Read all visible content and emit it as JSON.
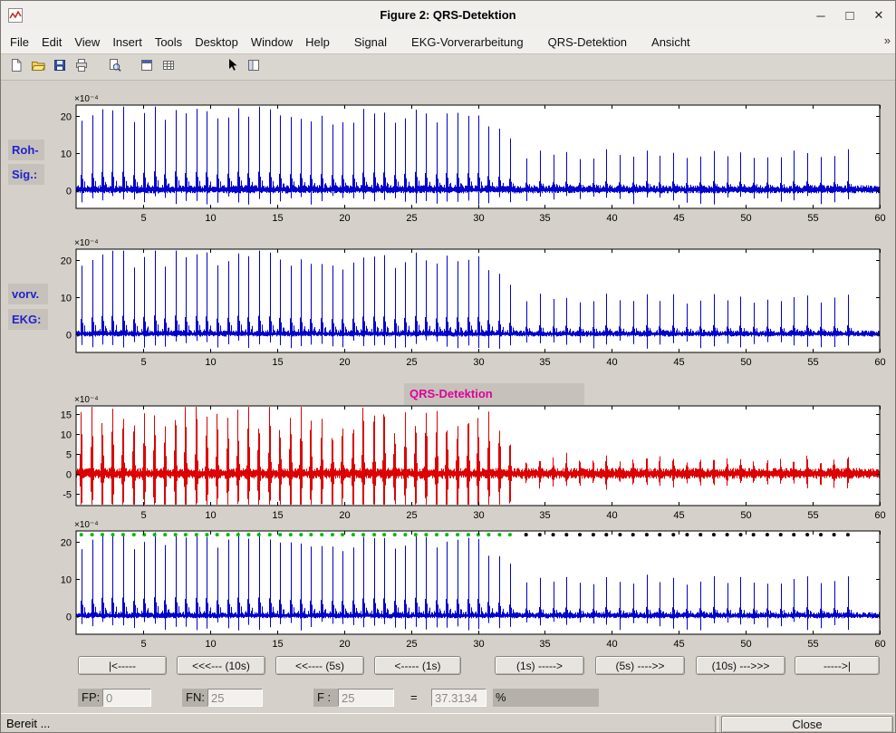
{
  "window": {
    "title": "Figure 2: QRS-Detektion",
    "controls": {
      "minimize": "─",
      "maximize": "□",
      "close": "✕"
    }
  },
  "menu": {
    "items": [
      "File",
      "Edit",
      "View",
      "Insert",
      "Tools",
      "Desktop",
      "Window",
      "Help",
      "Signal",
      "EKG-Vorverarbeitung",
      "QRS-Detektion",
      "Ansicht"
    ],
    "overflow": "»"
  },
  "toolbar": {
    "icons": [
      "new-document",
      "open-folder",
      "save",
      "print",
      "print-preview",
      "dock-window",
      "insert-table",
      "pointer",
      "layout-panels"
    ]
  },
  "panel_labels": {
    "roh_line1": "Roh-",
    "roh_line2": "Sig.:",
    "vorv_line1": "vorv.",
    "vorv_line2": "EKG:",
    "qrs_title": "QRS-Detektion"
  },
  "nav_buttons": [
    "|<-----",
    "<<<--- (10s)",
    "<<---- (5s)",
    "<----- (1s)",
    "(1s) ----->",
    "(5s) ---->>",
    "(10s) --->>>",
    "----->|"
  ],
  "fields": {
    "fp_label": "FP:",
    "fp_value": "0",
    "fn_label": "FN:",
    "fn_value": "25",
    "f_label": "F :",
    "f_value": "25",
    "equals": "=",
    "result_value": "37.3134",
    "percent": "%"
  },
  "statusbar": {
    "text": "Bereit ...",
    "close_label": "Close"
  },
  "colors": {
    "signal_blue": "#0000cc",
    "signal_red": "#dd0000",
    "label_blue": "#2222cc",
    "qrs_magenta": "#e0009b",
    "marker_detected": "#00bb00",
    "marker_missed": "#000000"
  },
  "beats": {
    "segments": [
      {
        "start": 0.4,
        "period": 0.78,
        "count": 42,
        "base_amp": 20
      },
      {
        "start": 33.6,
        "period": 1.0,
        "count": 25,
        "base_amp": 9.5
      }
    ],
    "taper_start": 30,
    "taper_end": 34,
    "taper_factor": 0.45,
    "marker_y": 22
  },
  "chart_data": [
    {
      "name": "roh-signal",
      "type": "line",
      "signal": "ecg",
      "color": "#0000cc",
      "x_range": [
        0,
        60
      ],
      "xticks": [
        5,
        10,
        15,
        20,
        25,
        30,
        35,
        40,
        45,
        50,
        55,
        60
      ],
      "ylim": [
        -5,
        23
      ],
      "yticks": [
        0,
        10,
        20
      ],
      "exponent": "×10⁻⁴",
      "noise_seed": 1,
      "noise_scale": 1
    },
    {
      "name": "vorverarbeitetes-ekg",
      "type": "line",
      "signal": "ecg",
      "color": "#0000cc",
      "x_range": [
        0,
        60
      ],
      "xticks": [
        5,
        10,
        15,
        20,
        25,
        30,
        35,
        40,
        45,
        50,
        55,
        60
      ],
      "ylim": [
        -5,
        23
      ],
      "yticks": [
        0,
        10,
        20
      ],
      "exponent": "×10⁻⁴",
      "noise_seed": 2,
      "noise_scale": 0.75
    },
    {
      "name": "qrs-detektion-gefiltert",
      "type": "line",
      "signal": "filtered",
      "color": "#dd0000",
      "x_range": [
        0,
        60
      ],
      "xticks": [
        5,
        10,
        15,
        20,
        25,
        30,
        35,
        40,
        45,
        50,
        55,
        60
      ],
      "ylim": [
        -8,
        17
      ],
      "yticks": [
        -5,
        0,
        5,
        10,
        15
      ],
      "exponent": "×10⁻⁴",
      "noise_seed": 3,
      "noise_scale": 1
    },
    {
      "name": "detektion-marker",
      "type": "line",
      "signal": "ecg",
      "color": "#0000cc",
      "x_range": [
        0,
        60
      ],
      "xticks": [
        5,
        10,
        15,
        20,
        25,
        30,
        35,
        40,
        45,
        50,
        55,
        60
      ],
      "ylim": [
        -5,
        23
      ],
      "yticks": [
        0,
        10,
        20
      ],
      "exponent": "×10⁻⁴",
      "noise_seed": 4,
      "noise_scale": 0.75,
      "markers": true
    }
  ]
}
